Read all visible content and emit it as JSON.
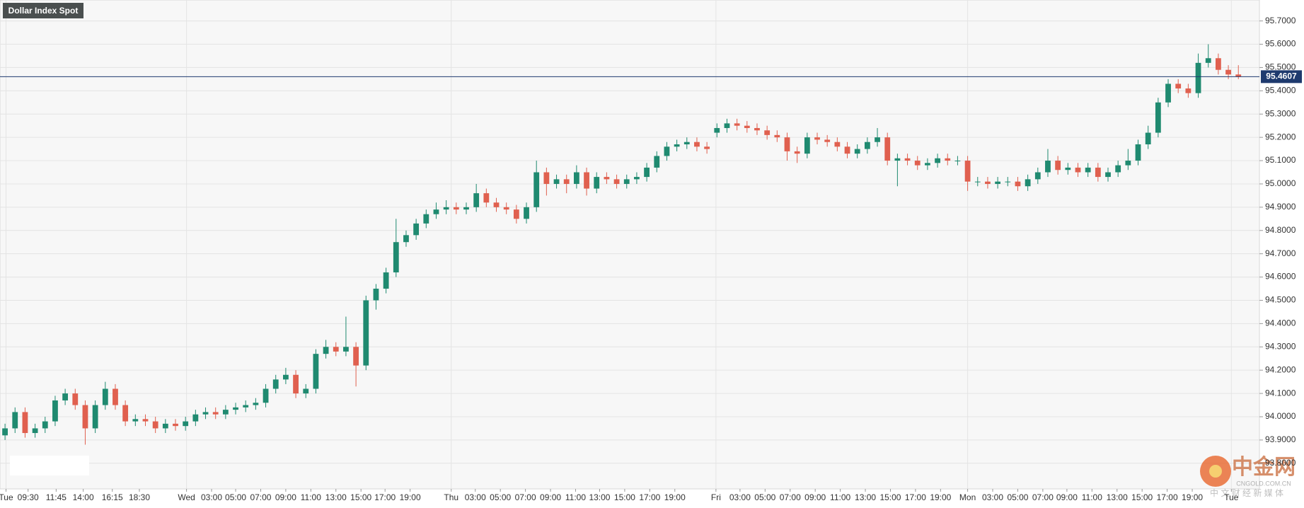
{
  "chart_data": {
    "type": "candlestick",
    "title": "Dollar Index Spot",
    "x": [
      0,
      1,
      2,
      3,
      4,
      5,
      6,
      7,
      8,
      9,
      10,
      11,
      12,
      13,
      14,
      15,
      16,
      17,
      18,
      19,
      20,
      21,
      22,
      23,
      24,
      25,
      26,
      27,
      28,
      29,
      30,
      31,
      32,
      33,
      34,
      35,
      36,
      37,
      38,
      39,
      40,
      41,
      42,
      43,
      44,
      45,
      46,
      47,
      48,
      49,
      50,
      51,
      52,
      53,
      54,
      55,
      56,
      57,
      58,
      59,
      60,
      61,
      62,
      63,
      64,
      65,
      66,
      67,
      68,
      69,
      70,
      71,
      72,
      73,
      74,
      75,
      76,
      77,
      78,
      79,
      80,
      81,
      82,
      83,
      84,
      85,
      86,
      87,
      88,
      89,
      90,
      91,
      92,
      93,
      94,
      95,
      96,
      97,
      98,
      99,
      100,
      101,
      102,
      103,
      104,
      105,
      106,
      107,
      108,
      109,
      110,
      111,
      112,
      113,
      114,
      115,
      116,
      117,
      118,
      119,
      120,
      121,
      122,
      123
    ],
    "open": [
      93.92,
      93.95,
      94.02,
      93.93,
      93.95,
      93.98,
      94.07,
      94.1,
      94.05,
      93.95,
      94.05,
      94.12,
      94.05,
      93.98,
      93.99,
      93.98,
      93.95,
      93.97,
      93.96,
      93.98,
      94.01,
      94.02,
      94.01,
      94.03,
      94.04,
      94.05,
      94.06,
      94.12,
      94.16,
      94.18,
      94.1,
      94.12,
      94.27,
      94.3,
      94.28,
      94.3,
      94.22,
      94.5,
      94.55,
      94.62,
      94.75,
      94.78,
      94.83,
      94.87,
      94.89,
      94.9,
      94.89,
      94.9,
      94.96,
      94.92,
      94.9,
      94.89,
      94.85,
      94.9,
      95.05,
      95.0,
      95.02,
      95.0,
      95.05,
      94.98,
      95.03,
      95.02,
      95.0,
      95.02,
      95.03,
      95.07,
      95.12,
      95.16,
      95.17,
      95.18,
      95.16,
      95.22,
      95.24,
      95.26,
      95.25,
      95.24,
      95.23,
      95.21,
      95.2,
      95.14,
      95.13,
      95.2,
      95.19,
      95.18,
      95.16,
      95.13,
      95.15,
      95.18,
      95.2,
      95.1,
      95.11,
      95.1,
      95.08,
      95.09,
      95.11,
      95.1,
      95.1,
      95.01,
      95.01,
      95.0,
      95.01,
      95.01,
      94.99,
      95.02,
      95.05,
      95.1,
      95.06,
      95.07,
      95.05,
      95.07,
      95.03,
      95.05,
      95.08,
      95.1,
      95.17,
      95.22,
      95.35,
      95.43,
      95.41,
      95.39,
      95.52,
      95.54,
      95.49,
      95.47
    ],
    "high": [
      93.97,
      94.04,
      94.04,
      93.97,
      94.0,
      94.09,
      94.12,
      94.12,
      94.07,
      94.07,
      94.15,
      94.14,
      94.07,
      94.01,
      94.01,
      94.0,
      93.99,
      93.99,
      94.0,
      94.03,
      94.04,
      94.04,
      94.05,
      94.06,
      94.07,
      94.08,
      94.14,
      94.18,
      94.21,
      94.2,
      94.14,
      94.29,
      94.33,
      94.32,
      94.43,
      94.32,
      94.52,
      94.57,
      94.64,
      94.85,
      94.8,
      94.85,
      94.89,
      94.92,
      94.93,
      94.92,
      94.92,
      95.0,
      94.98,
      94.94,
      94.92,
      94.91,
      94.92,
      95.1,
      95.07,
      95.04,
      95.04,
      95.08,
      95.07,
      95.05,
      95.05,
      95.04,
      95.04,
      95.05,
      95.09,
      95.14,
      95.18,
      95.19,
      95.2,
      95.2,
      95.18,
      95.26,
      95.28,
      95.28,
      95.27,
      95.26,
      95.25,
      95.23,
      95.22,
      95.16,
      95.22,
      95.22,
      95.21,
      95.2,
      95.18,
      95.17,
      95.2,
      95.24,
      95.22,
      95.13,
      95.13,
      95.12,
      95.11,
      95.13,
      95.13,
      95.12,
      95.12,
      95.03,
      95.03,
      95.03,
      95.03,
      95.03,
      95.04,
      95.07,
      95.15,
      95.12,
      95.09,
      95.09,
      95.09,
      95.09,
      95.07,
      95.1,
      95.15,
      95.19,
      95.25,
      95.37,
      95.45,
      95.45,
      95.43,
      95.56,
      95.6,
      95.56,
      95.51,
      95.51
    ],
    "low": [
      93.9,
      93.93,
      93.91,
      93.91,
      93.93,
      93.96,
      94.05,
      94.03,
      93.88,
      93.93,
      94.03,
      94.03,
      93.96,
      93.96,
      93.96,
      93.93,
      93.93,
      93.94,
      93.94,
      93.96,
      93.99,
      93.99,
      93.99,
      94.01,
      94.02,
      94.03,
      94.04,
      94.1,
      94.14,
      94.08,
      94.08,
      94.1,
      94.25,
      94.26,
      94.26,
      94.13,
      94.2,
      94.46,
      94.53,
      94.6,
      94.73,
      94.76,
      94.81,
      94.85,
      94.87,
      94.87,
      94.87,
      94.88,
      94.9,
      94.88,
      94.87,
      94.83,
      94.83,
      94.88,
      94.95,
      94.98,
      94.96,
      94.98,
      94.95,
      94.96,
      95.0,
      94.98,
      94.98,
      95.0,
      95.01,
      95.05,
      95.1,
      95.14,
      95.15,
      95.14,
      95.13,
      95.2,
      95.22,
      95.23,
      95.22,
      95.21,
      95.19,
      95.18,
      95.1,
      95.09,
      95.11,
      95.17,
      95.16,
      95.14,
      95.11,
      95.11,
      95.13,
      95.16,
      95.08,
      94.99,
      95.08,
      95.06,
      95.06,
      95.07,
      95.08,
      95.08,
      94.97,
      94.99,
      94.98,
      94.98,
      94.99,
      94.97,
      94.97,
      95.0,
      95.03,
      95.04,
      95.04,
      95.03,
      95.03,
      95.01,
      95.01,
      95.03,
      95.06,
      95.08,
      95.15,
      95.2,
      95.33,
      95.39,
      95.37,
      95.37,
      95.5,
      95.47,
      95.45,
      95.45
    ],
    "close": [
      93.95,
      94.02,
      93.93,
      93.95,
      93.98,
      94.07,
      94.1,
      94.05,
      93.95,
      94.05,
      94.12,
      94.05,
      93.98,
      93.99,
      93.98,
      93.95,
      93.97,
      93.96,
      93.98,
      94.01,
      94.02,
      94.01,
      94.03,
      94.04,
      94.05,
      94.06,
      94.12,
      94.16,
      94.18,
      94.1,
      94.12,
      94.27,
      94.3,
      94.28,
      94.3,
      94.22,
      94.5,
      94.55,
      94.62,
      94.75,
      94.78,
      94.83,
      94.87,
      94.89,
      94.9,
      94.89,
      94.9,
      94.96,
      94.92,
      94.9,
      94.89,
      94.85,
      94.9,
      95.05,
      95.0,
      95.02,
      95.0,
      95.05,
      94.98,
      95.03,
      95.02,
      95.0,
      95.02,
      95.03,
      95.07,
      95.12,
      95.16,
      95.17,
      95.18,
      95.16,
      95.15,
      95.24,
      95.26,
      95.25,
      95.24,
      95.23,
      95.21,
      95.2,
      95.14,
      95.13,
      95.2,
      95.19,
      95.18,
      95.16,
      95.13,
      95.15,
      95.18,
      95.2,
      95.1,
      95.11,
      95.1,
      95.08,
      95.09,
      95.11,
      95.1,
      95.1,
      95.01,
      95.01,
      95.0,
      95.01,
      95.01,
      94.99,
      95.02,
      95.05,
      95.1,
      95.06,
      95.07,
      95.05,
      95.07,
      95.03,
      95.05,
      95.08,
      95.1,
      95.17,
      95.22,
      95.35,
      95.43,
      95.41,
      95.39,
      95.52,
      95.54,
      95.49,
      95.47,
      95.46
    ],
    "up_color": "#1f8a70",
    "down_color": "#e0604f",
    "xlim": [
      -0.5,
      125.1
    ],
    "xticks": [
      {
        "value": 0.1,
        "label": "Tue"
      },
      {
        "value": 2.3,
        "label": "09:30"
      },
      {
        "value": 5.1,
        "label": "11:45"
      },
      {
        "value": 7.8,
        "label": "14:00"
      },
      {
        "value": 10.7,
        "label": "16:15"
      },
      {
        "value": 13.4,
        "label": "18:30"
      },
      {
        "value": 18.1,
        "label": "Wed"
      },
      {
        "value": 20.6,
        "label": "03:00"
      },
      {
        "value": 23.0,
        "label": "05:00"
      },
      {
        "value": 25.5,
        "label": "07:00"
      },
      {
        "value": 28.0,
        "label": "09:00"
      },
      {
        "value": 30.5,
        "label": "11:00"
      },
      {
        "value": 33.0,
        "label": "13:00"
      },
      {
        "value": 35.5,
        "label": "15:00"
      },
      {
        "value": 37.9,
        "label": "17:00"
      },
      {
        "value": 40.4,
        "label": "19:00"
      },
      {
        "value": 44.5,
        "label": "Thu"
      },
      {
        "value": 46.9,
        "label": "03:00"
      },
      {
        "value": 49.4,
        "label": "05:00"
      },
      {
        "value": 51.9,
        "label": "07:00"
      },
      {
        "value": 54.4,
        "label": "09:00"
      },
      {
        "value": 56.9,
        "label": "11:00"
      },
      {
        "value": 59.3,
        "label": "13:00"
      },
      {
        "value": 61.8,
        "label": "15:00"
      },
      {
        "value": 64.3,
        "label": "17:00"
      },
      {
        "value": 66.8,
        "label": "19:00"
      },
      {
        "value": 70.9,
        "label": "Fri"
      },
      {
        "value": 73.3,
        "label": "03:00"
      },
      {
        "value": 75.8,
        "label": "05:00"
      },
      {
        "value": 78.3,
        "label": "07:00"
      },
      {
        "value": 80.8,
        "label": "09:00"
      },
      {
        "value": 83.3,
        "label": "11:00"
      },
      {
        "value": 85.8,
        "label": "13:00"
      },
      {
        "value": 88.3,
        "label": "15:00"
      },
      {
        "value": 90.8,
        "label": "17:00"
      },
      {
        "value": 93.3,
        "label": "19:00"
      },
      {
        "value": 96.0,
        "label": "Mon"
      },
      {
        "value": 98.5,
        "label": "03:00"
      },
      {
        "value": 101.0,
        "label": "05:00"
      },
      {
        "value": 103.5,
        "label": "07:00"
      },
      {
        "value": 105.9,
        "label": "09:00"
      },
      {
        "value": 108.4,
        "label": "11:00"
      },
      {
        "value": 110.9,
        "label": "13:00"
      },
      {
        "value": 113.4,
        "label": "15:00"
      },
      {
        "value": 115.9,
        "label": "17:00"
      },
      {
        "value": 118.4,
        "label": "19:00"
      },
      {
        "value": 122.3,
        "label": "Tue"
      }
    ],
    "ylim": [
      93.69,
      95.79
    ],
    "yticks": [
      {
        "value": 93.8,
        "label": "93.8000"
      },
      {
        "value": 93.9,
        "label": "93.9000"
      },
      {
        "value": 94.0,
        "label": "94.0000"
      },
      {
        "value": 94.1,
        "label": "94.1000"
      },
      {
        "value": 94.2,
        "label": "94.2000"
      },
      {
        "value": 94.3,
        "label": "94.3000"
      },
      {
        "value": 94.4,
        "label": "94.4000"
      },
      {
        "value": 94.5,
        "label": "94.5000"
      },
      {
        "value": 94.6,
        "label": "94.6000"
      },
      {
        "value": 94.7,
        "label": "94.7000"
      },
      {
        "value": 94.8,
        "label": "94.8000"
      },
      {
        "value": 94.9,
        "label": "94.9000"
      },
      {
        "value": 95.0,
        "label": "95.0000"
      },
      {
        "value": 95.1,
        "label": "95.1000"
      },
      {
        "value": 95.2,
        "label": "95.2000"
      },
      {
        "value": 95.3,
        "label": "95.3000"
      },
      {
        "value": 95.4,
        "label": "95.4000"
      },
      {
        "value": 95.5,
        "label": "95.5000"
      },
      {
        "value": 95.6,
        "label": "95.6000"
      },
      {
        "value": 95.7,
        "label": "95.7000"
      }
    ],
    "last_price": 95.4607,
    "last_price_color": "#1e3a6e",
    "grid": true,
    "watermark": {
      "logo": "中金网",
      "site": "CNGOLD.COM.CN",
      "slogan": "中 文 财 经 新 媒 体"
    }
  }
}
